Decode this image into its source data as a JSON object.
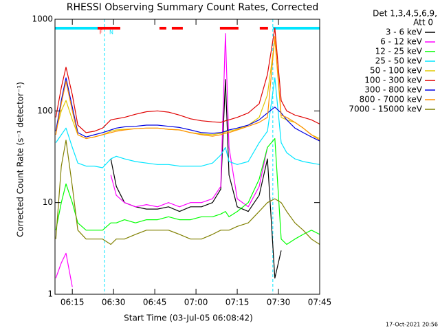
{
  "chart_data": {
    "type": "line",
    "title": "RHESSI Observing Summary Count Rates, Corrected",
    "x_label": "Start Time (03-Jul-05 06:08:42)",
    "y_label": "Corrected Count Rate (s⁻¹ detector⁻¹)",
    "legend_header": [
      "Det 1,3,4,5,6,9,",
      "Att 0"
    ],
    "timestamp": "17-Oct-2021 20:56",
    "log_y": true,
    "xlim": [
      368.7,
      465
    ],
    "xticks": [
      {
        "value": 375,
        "label": "06:15"
      },
      {
        "value": 390,
        "label": "06:30"
      },
      {
        "value": 405,
        "label": "06:45"
      },
      {
        "value": 420,
        "label": "07:00"
      },
      {
        "value": 435,
        "label": "07:15"
      },
      {
        "value": 450,
        "label": "07:30"
      },
      {
        "value": 465,
        "label": "07:45"
      }
    ],
    "ylim": [
      1,
      1000
    ],
    "yticks": [
      1,
      10,
      100,
      1000
    ],
    "flags": [
      {
        "label": "N",
        "color": "#00e5ff",
        "intervals": [
          [
            368.7,
            386.7
          ],
          [
            447.95,
            465
          ]
        ]
      },
      {
        "label": "F",
        "color": "#ff0000",
        "intervals": [
          [
            384.2,
            392.45
          ],
          [
            406.7,
            409.2
          ],
          [
            411.2,
            415.2
          ],
          [
            428.7,
            435.45
          ],
          [
            443.2,
            446.2
          ]
        ]
      }
    ],
    "x": [
      369,
      371,
      372.7,
      375,
      377,
      380,
      383,
      386,
      389,
      391,
      394,
      398,
      402,
      406,
      410,
      414,
      418,
      422,
      426,
      429,
      430.7,
      432,
      435,
      439,
      443,
      446,
      448.7,
      451,
      453,
      456,
      459,
      462,
      465
    ],
    "series": [
      {
        "name": "3 - 6 keV",
        "color": "#000000",
        "values": [
          null,
          null,
          null,
          null,
          null,
          null,
          null,
          null,
          30,
          15,
          10,
          9,
          8.5,
          8.5,
          9,
          8,
          9,
          9,
          10,
          14,
          220,
          20,
          9,
          8,
          12,
          30,
          1.5,
          3,
          null,
          null,
          null,
          null,
          null
        ]
      },
      {
        "name": "6 - 12 keV",
        "color": "#ff00ff",
        "values": [
          1.5,
          2.2,
          2.8,
          1.2,
          null,
          null,
          null,
          null,
          20,
          12,
          10,
          9,
          9.5,
          9,
          10,
          9,
          10,
          10,
          11,
          15,
          700,
          40,
          11,
          9,
          15,
          40,
          null,
          null,
          null,
          null,
          null,
          null,
          null
        ]
      },
      {
        "name": "12 - 25 keV",
        "color": "#00ff00",
        "values": [
          5,
          10,
          16,
          10,
          6,
          5,
          5,
          5,
          6,
          6,
          6.5,
          6,
          6.5,
          6.5,
          7,
          6.5,
          6.5,
          7,
          7,
          7.5,
          8,
          7,
          8,
          10,
          18,
          40,
          50,
          4,
          3.5,
          4,
          4.5,
          5,
          4.5
        ]
      },
      {
        "name": "25 - 50 keV",
        "color": "#00e5ff",
        "values": [
          45,
          55,
          65,
          40,
          27,
          25,
          25,
          24,
          30,
          32,
          30,
          28,
          27,
          26,
          26,
          25,
          25,
          25,
          27,
          33,
          40,
          28,
          26,
          28,
          45,
          60,
          230,
          45,
          35,
          30,
          28,
          27,
          26
        ]
      },
      {
        "name": "50 - 100 keV",
        "color": "#e0c800",
        "values": [
          60,
          100,
          130,
          80,
          55,
          50,
          52,
          55,
          60,
          62,
          63,
          64,
          65,
          65,
          63,
          62,
          58,
          56,
          55,
          57,
          59,
          60,
          63,
          70,
          85,
          150,
          600,
          85,
          80,
          75,
          65,
          55,
          50
        ]
      },
      {
        "name": "100 - 300 keV",
        "color": "#e00000",
        "values": [
          85,
          180,
          300,
          150,
          70,
          58,
          60,
          65,
          80,
          82,
          85,
          92,
          98,
          100,
          97,
          90,
          82,
          78,
          76,
          75,
          78,
          80,
          85,
          95,
          120,
          250,
          800,
          130,
          100,
          90,
          85,
          80,
          72
        ]
      },
      {
        "name": "300 - 800 keV",
        "color": "#0000e0",
        "values": [
          60,
          130,
          230,
          110,
          58,
          52,
          55,
          58,
          62,
          65,
          67,
          68,
          70,
          70,
          68,
          66,
          62,
          58,
          57,
          58,
          60,
          62,
          65,
          70,
          80,
          95,
          110,
          95,
          80,
          65,
          58,
          52,
          47
        ]
      },
      {
        "name": "800 - 7000 keV",
        "color": "#ff9000",
        "values": [
          55,
          120,
          210,
          100,
          55,
          50,
          52,
          55,
          58,
          60,
          62,
          64,
          65,
          65,
          63,
          62,
          58,
          55,
          53,
          55,
          57,
          58,
          62,
          68,
          75,
          85,
          650,
          90,
          85,
          75,
          65,
          55,
          48
        ]
      },
      {
        "name": "7000 - 15000 keV",
        "color": "#808000",
        "values": [
          4,
          25,
          48,
          15,
          5,
          4,
          4,
          4,
          3.5,
          4,
          4,
          4.5,
          5,
          5,
          5,
          4.5,
          4,
          4,
          4.5,
          5,
          5,
          5,
          5.5,
          6,
          8,
          10,
          11,
          10,
          8,
          6,
          5,
          4,
          3.5
        ]
      }
    ]
  }
}
